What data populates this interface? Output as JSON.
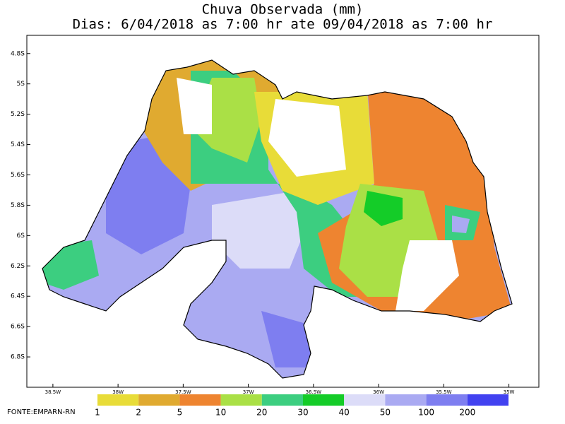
{
  "chart_data": {
    "type": "map",
    "title": "Chuva Observada (mm)",
    "subtitle": "Dias: 6/04/2018 as 7:00 hr ate 09/04/2018 as 7:00 hr",
    "xlim": [
      -38.7,
      -34.77
    ],
    "ylim": [
      -7.0,
      -4.68
    ],
    "yticks": [
      {
        "value": -4.8,
        "label": "4.8S"
      },
      {
        "value": -5.0,
        "label": "5S"
      },
      {
        "value": -5.2,
        "label": "5.2S"
      },
      {
        "value": -5.4,
        "label": "5.4S"
      },
      {
        "value": -5.6,
        "label": "5.6S"
      },
      {
        "value": -5.8,
        "label": "5.8S"
      },
      {
        "value": -6.0,
        "label": "6S"
      },
      {
        "value": -6.2,
        "label": "6.2S"
      },
      {
        "value": -6.4,
        "label": "6.4S"
      },
      {
        "value": -6.6,
        "label": "6.6S"
      },
      {
        "value": -6.8,
        "label": "6.8S"
      }
    ],
    "xticks": [
      {
        "value": -38.5,
        "label": "38.5W"
      },
      {
        "value": -38.0,
        "label": "38W"
      },
      {
        "value": -37.5,
        "label": "37.5W"
      },
      {
        "value": -37.0,
        "label": "37W"
      },
      {
        "value": -36.5,
        "label": "36.5W"
      },
      {
        "value": -36.0,
        "label": "36W"
      },
      {
        "value": -35.5,
        "label": "35.5W"
      },
      {
        "value": -35.0,
        "label": "35W"
      }
    ],
    "legend": {
      "levels": [
        1,
        2,
        5,
        10,
        20,
        30,
        40,
        50,
        100,
        200
      ],
      "colors": [
        "#e8dc38",
        "#e0aa30",
        "#ee8430",
        "#aae046",
        "#3cce80",
        "#14cc28",
        "#dcdcf8",
        "#aaaaf2",
        "#7e7ef0",
        "#4242f0"
      ]
    },
    "source": "FONTE:EMPARN-RN"
  }
}
